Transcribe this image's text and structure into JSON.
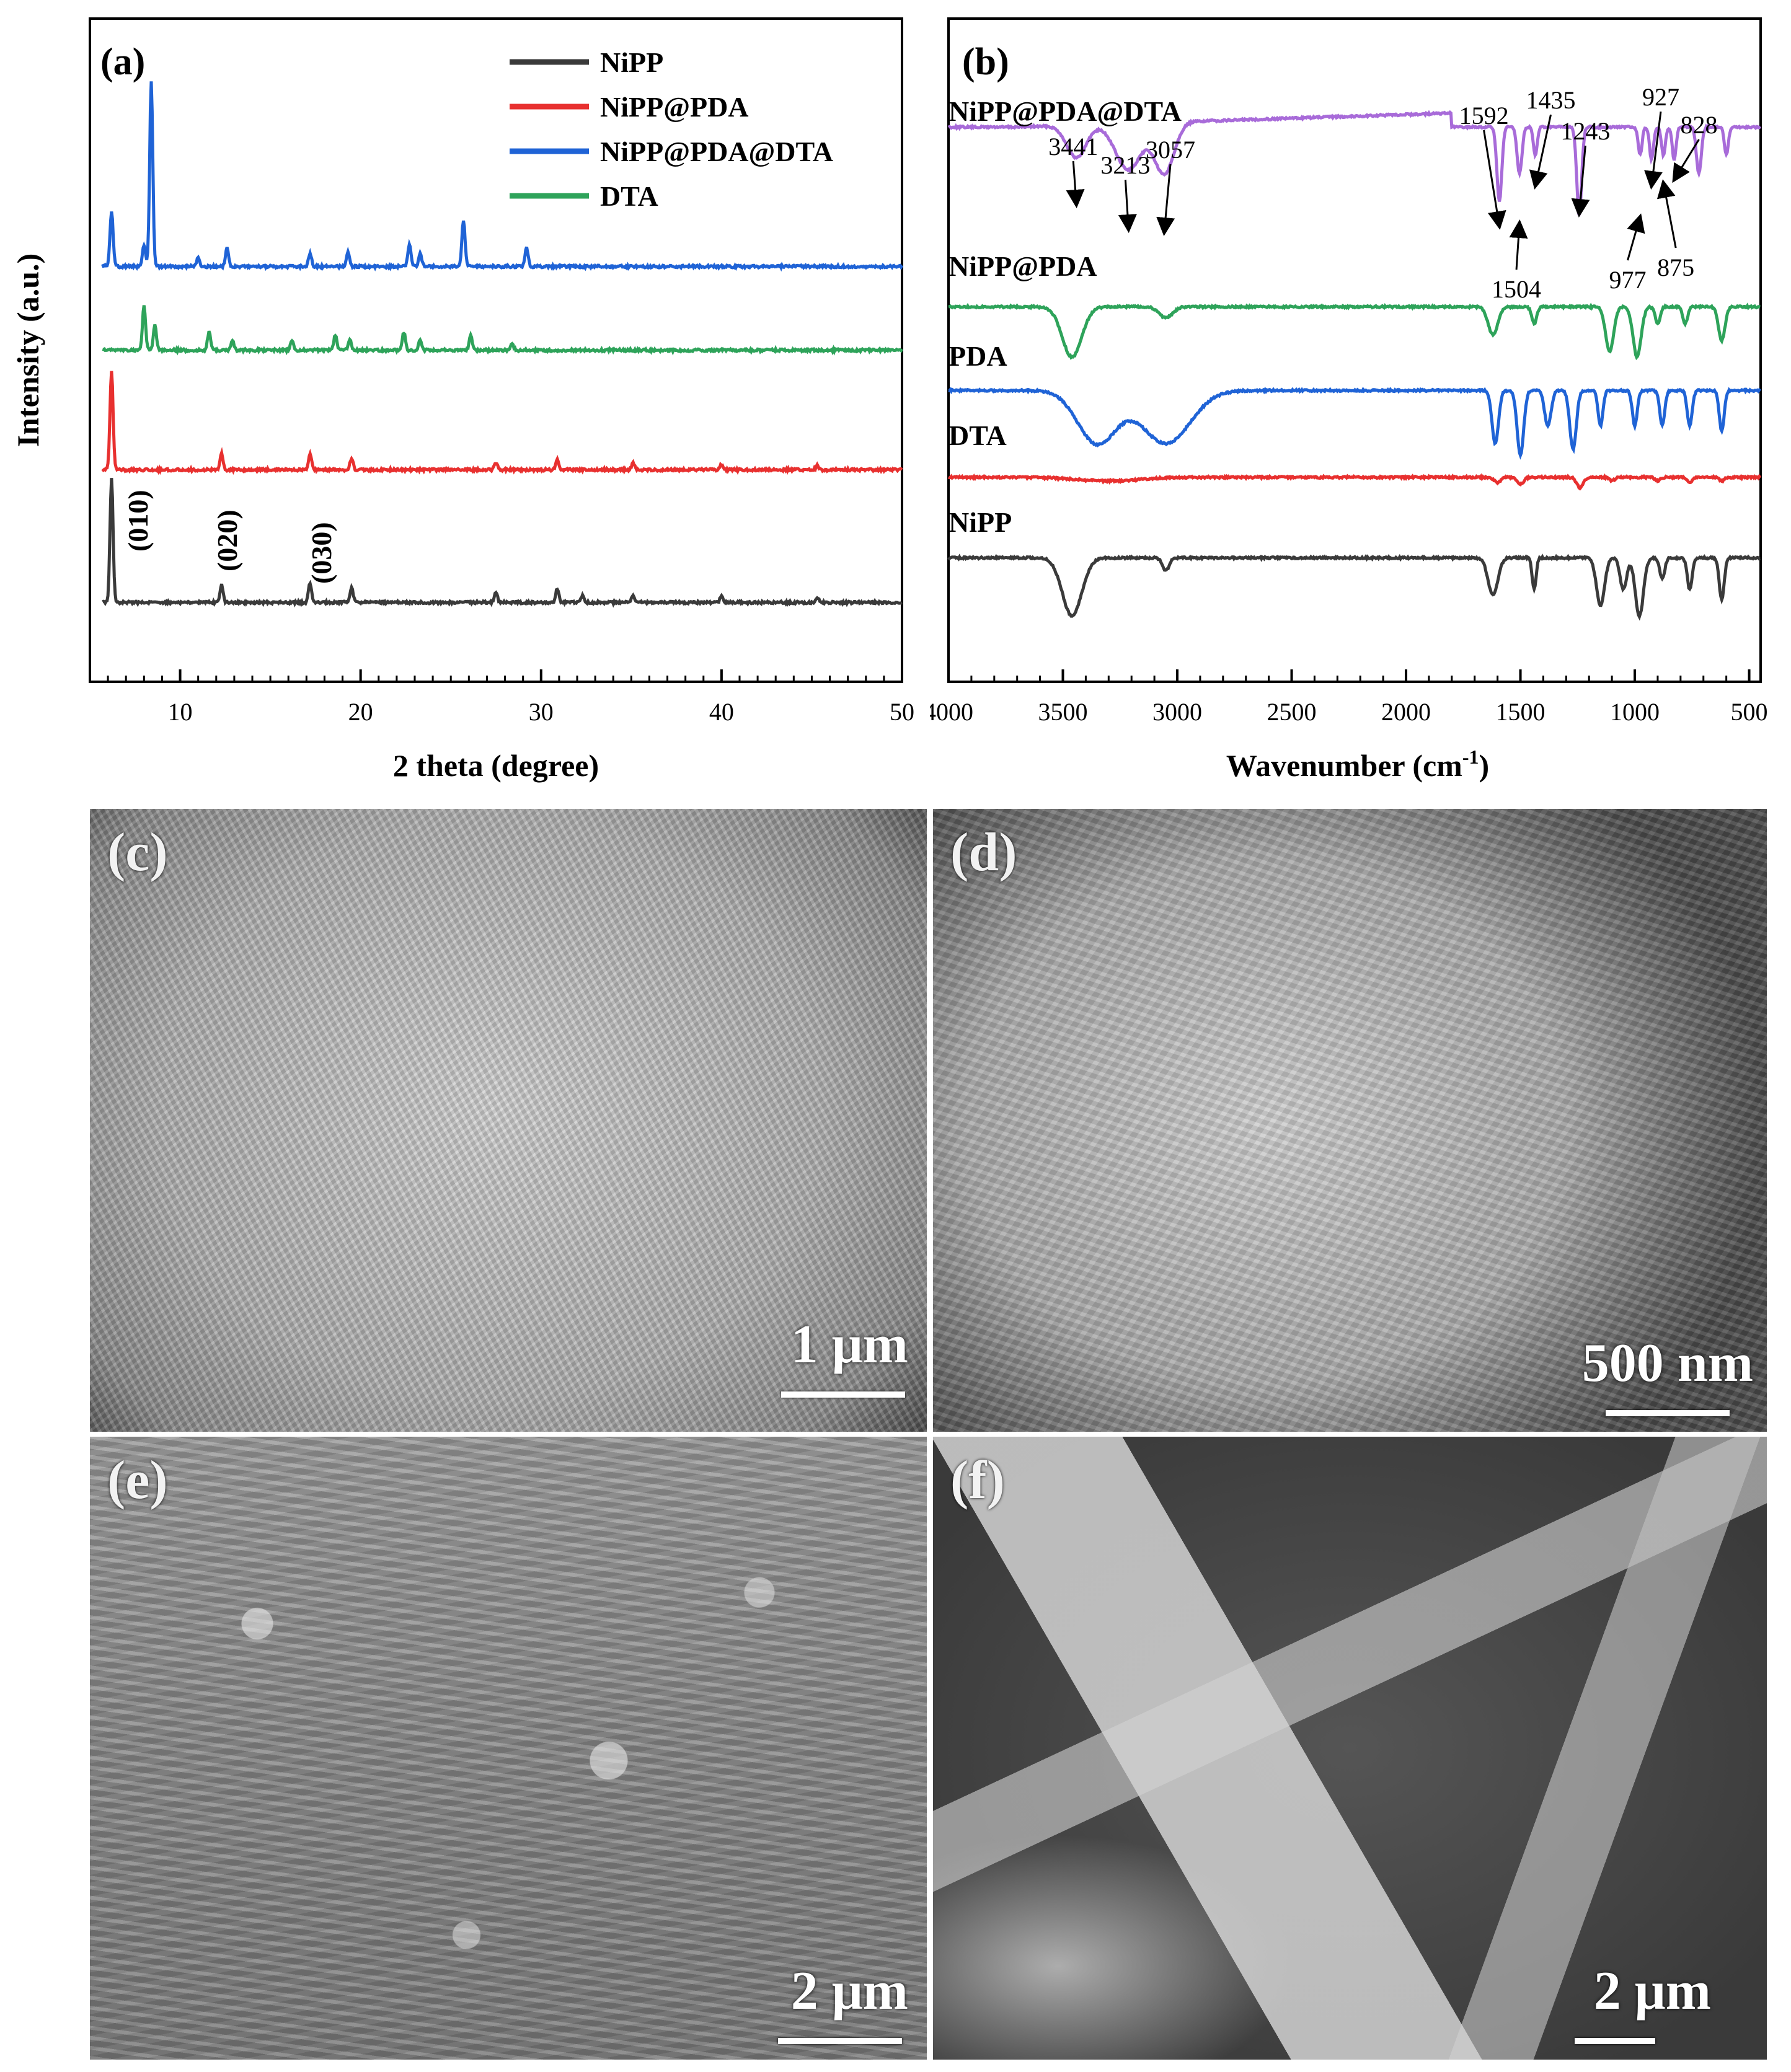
{
  "chart_data": [
    {
      "type": "line",
      "panel": "(a)",
      "xlabel": "2 theta (degree)",
      "ylabel": "Intensity (a.u.)",
      "xlim": [
        5,
        50
      ],
      "xticks": [
        "10",
        "20",
        "30",
        "40",
        "50"
      ],
      "legend": {
        "placement": "top-right",
        "entries": [
          "NiPP",
          "NiPP@PDA",
          "NiPP@PDA@DTA",
          "DTA"
        ]
      },
      "series": [
        {
          "name": "NiPP",
          "color": "#3a3a3a",
          "stack": 0,
          "peaks": [
            [
              6.2,
              1.0
            ],
            [
              12.3,
              0.14
            ],
            [
              17.2,
              0.16
            ],
            [
              19.5,
              0.12
            ],
            [
              27.5,
              0.08
            ],
            [
              30.9,
              0.11
            ],
            [
              32.3,
              0.06
            ],
            [
              35.1,
              0.06
            ],
            [
              40.0,
              0.05
            ],
            [
              45.3,
              0.04
            ]
          ]
        },
        {
          "name": "NiPP@PDA",
          "color": "#e8302f",
          "stack": 1,
          "peaks": [
            [
              6.2,
              1.0
            ],
            [
              12.3,
              0.16
            ],
            [
              17.2,
              0.16
            ],
            [
              19.5,
              0.12
            ],
            [
              27.5,
              0.07
            ],
            [
              30.9,
              0.11
            ],
            [
              35.1,
              0.07
            ],
            [
              40.0,
              0.05
            ],
            [
              45.3,
              0.04
            ]
          ]
        },
        {
          "name": "DTA",
          "color": "#2ea35a",
          "stack": 2,
          "peaks": [
            [
              8.0,
              0.6
            ],
            [
              8.6,
              0.35
            ],
            [
              11.6,
              0.24
            ],
            [
              12.9,
              0.12
            ],
            [
              16.2,
              0.14
            ],
            [
              18.6,
              0.2
            ],
            [
              19.4,
              0.14
            ],
            [
              22.4,
              0.24
            ],
            [
              23.3,
              0.14
            ],
            [
              26.1,
              0.2
            ],
            [
              28.4,
              0.08
            ]
          ]
        },
        {
          "name": "NiPP@PDA@DTA",
          "color": "#1f63d6",
          "stack": 3,
          "peaks": [
            [
              6.2,
              0.3
            ],
            [
              8.0,
              0.12
            ],
            [
              8.4,
              1.0
            ],
            [
              11.0,
              0.05
            ],
            [
              12.6,
              0.1
            ],
            [
              17.2,
              0.07
            ],
            [
              19.3,
              0.08
            ],
            [
              22.7,
              0.12
            ],
            [
              23.3,
              0.07
            ],
            [
              25.7,
              0.25
            ],
            [
              29.2,
              0.1
            ]
          ]
        }
      ],
      "annotations": [
        "(010)",
        "(020)",
        "(030)"
      ]
    },
    {
      "type": "line",
      "panel": "(b)",
      "xlabel": "Wavenumber (cm",
      "xlabel_sup": "-1",
      "xlabel_end": ")",
      "xlim": [
        4000,
        450
      ],
      "xticks": [
        "4000",
        "3500",
        "3000",
        "2500",
        "2000",
        "1500",
        "1000",
        "500"
      ],
      "series_labels": [
        "NiPP@PDA@DTA",
        "NiPP@PDA",
        "PDA",
        "DTA",
        "NiPP"
      ],
      "series": [
        {
          "color": "#a86bd9",
          "stack": 4,
          "bands": [
            [
              3441,
              0.35,
              60
            ],
            [
              3213,
              0.5,
              80
            ],
            [
              3057,
              0.55,
              60
            ],
            [
              1592,
              0.8,
              15
            ],
            [
              1504,
              0.5,
              15
            ],
            [
              1435,
              0.3,
              12
            ],
            [
              1243,
              0.95,
              15
            ],
            [
              977,
              0.3,
              12
            ],
            [
              927,
              0.35,
              12
            ],
            [
              875,
              0.3,
              12
            ],
            [
              828,
              0.35,
              12
            ],
            [
              720,
              0.5,
              15
            ],
            [
              600,
              0.3,
              12
            ]
          ]
        },
        {
          "color": "#2ea35a",
          "stack": 3,
          "bands": [
            [
              3460,
              0.45,
              60
            ],
            [
              3050,
              0.1,
              40
            ],
            [
              1620,
              0.25,
              30
            ],
            [
              1440,
              0.15,
              15
            ],
            [
              1110,
              0.4,
              25
            ],
            [
              990,
              0.45,
              25
            ],
            [
              900,
              0.15,
              15
            ],
            [
              780,
              0.15,
              15
            ],
            [
              620,
              0.3,
              20
            ]
          ]
        },
        {
          "color": "#1f63d6",
          "stack": 2,
          "bands": [
            [
              3350,
              0.45,
              120
            ],
            [
              3050,
              0.45,
              150
            ],
            [
              1610,
              0.45,
              20
            ],
            [
              1500,
              0.55,
              20
            ],
            [
              1380,
              0.3,
              20
            ],
            [
              1270,
              0.5,
              20
            ],
            [
              1150,
              0.3,
              15
            ],
            [
              1000,
              0.3,
              15
            ],
            [
              880,
              0.3,
              15
            ],
            [
              760,
              0.3,
              15
            ],
            [
              620,
              0.35,
              15
            ]
          ]
        },
        {
          "color": "#e8302f",
          "stack": 1,
          "bands": [
            [
              3300,
              0.1,
              200
            ],
            [
              1600,
              0.15,
              20
            ],
            [
              1500,
              0.18,
              20
            ],
            [
              1240,
              0.28,
              20
            ],
            [
              1100,
              0.1,
              15
            ],
            [
              900,
              0.1,
              15
            ],
            [
              760,
              0.15,
              15
            ],
            [
              620,
              0.1,
              15
            ]
          ]
        },
        {
          "color": "#3a3a3a",
          "stack": 0,
          "bands": [
            [
              3460,
              0.55,
              60
            ],
            [
              3050,
              0.12,
              20
            ],
            [
              1620,
              0.35,
              30
            ],
            [
              1440,
              0.3,
              12
            ],
            [
              1150,
              0.45,
              25
            ],
            [
              1050,
              0.3,
              20
            ],
            [
              980,
              0.55,
              25
            ],
            [
              880,
              0.2,
              15
            ],
            [
              760,
              0.3,
              15
            ],
            [
              620,
              0.4,
              15
            ]
          ]
        }
      ],
      "annotations": [
        "3441",
        "3213",
        "3057",
        "1592",
        "1504",
        "1435",
        "1243",
        "977",
        "927",
        "875",
        "828"
      ]
    }
  ],
  "micrographs": [
    {
      "panel": "(c)",
      "scale": "1 μm"
    },
    {
      "panel": "(d)",
      "scale": "500 nm"
    },
    {
      "panel": "(e)",
      "scale": "2 μm"
    },
    {
      "panel": "(f)",
      "scale": "2 μm"
    }
  ]
}
